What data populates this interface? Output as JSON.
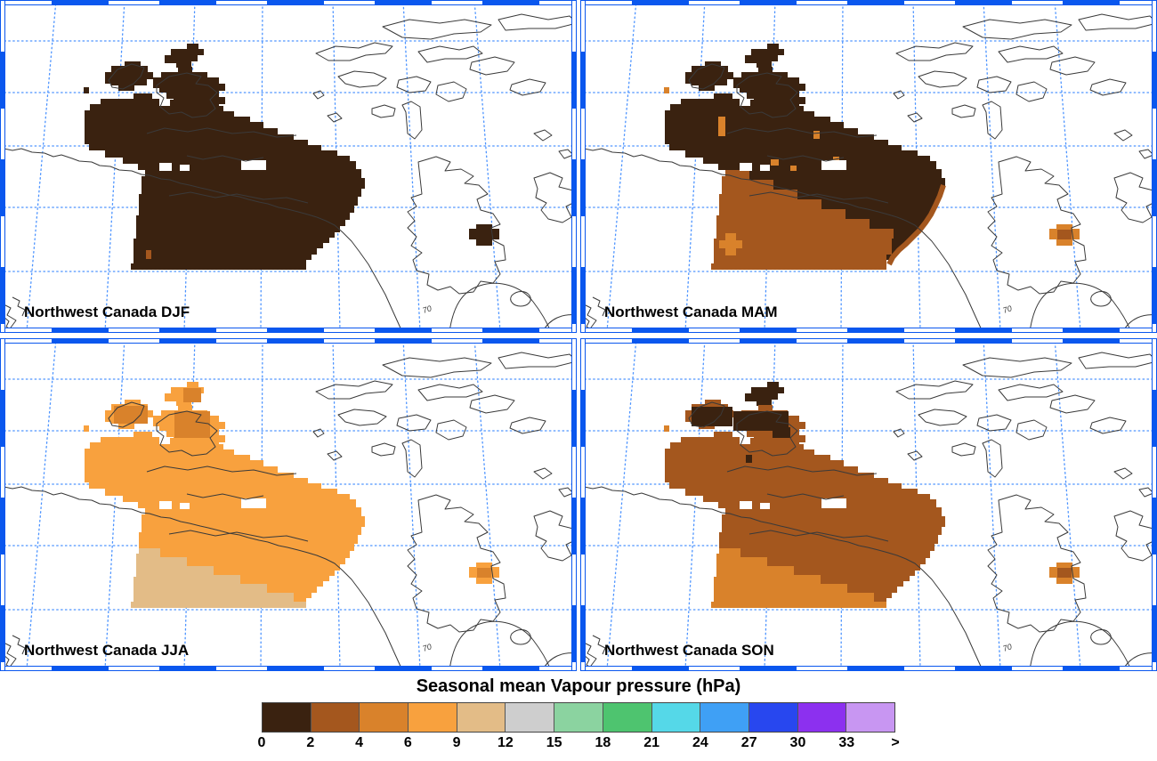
{
  "figure": {
    "title": "Seasonal mean Vapour pressure maps, Northwest Canada",
    "region": "Northwest Canada",
    "annotation_70": "70"
  },
  "panels": [
    {
      "id": "djf",
      "label": "Northwest Canada DJF",
      "dominant_range_hpa": "0-2"
    },
    {
      "id": "mam",
      "label": "Northwest Canada MAM",
      "dominant_range_hpa": "0-2 north, 2-4 south"
    },
    {
      "id": "jja",
      "label": "Northwest Canada JJA",
      "dominant_range_hpa": "6-9 main, 4-6 islands, 9-12 southwest"
    },
    {
      "id": "son",
      "label": "Northwest Canada SON",
      "dominant_range_hpa": "2-4 main, 0-2 islands, 4-6 southwest"
    }
  ],
  "legend": {
    "title": "Seasonal mean Vapour pressure (hPa)",
    "tick_labels": [
      "0",
      "2",
      "4",
      "6",
      "9",
      "12",
      "15",
      "18",
      "21",
      "24",
      "27",
      "30",
      "33",
      ">"
    ],
    "colors": [
      "#3a2210",
      "#a4571e",
      "#d9822b",
      "#f8a13e",
      "#e3bc87",
      "#cecece",
      "#8bd3a0",
      "#4ec46f",
      "#55d8e8",
      "#3fa0f5",
      "#2847ef",
      "#8c30ef",
      "#c896f2"
    ]
  },
  "map_style": {
    "frame_blue": "#0a57ee",
    "grid_blue": "#4d94ff",
    "coastline": "#3a3a3a"
  },
  "chart_data": {
    "type": "heatmap",
    "title": "Seasonal mean Vapour pressure (hPa)",
    "legend_bounds_hpa": [
      0,
      2,
      4,
      6,
      9,
      12,
      15,
      18,
      21,
      24,
      27,
      30,
      33
    ],
    "series": [
      {
        "name": "DJF",
        "values_hpa": "0-2 over nearly all of region"
      },
      {
        "name": "MAM",
        "values_hpa": "0-2 over north/islands, 2-4 over southern interior with small 4-6 spots"
      },
      {
        "name": "JJA",
        "values_hpa": "6-9 over most of region, 4-6 on arctic islands, 9-12 in southwest"
      },
      {
        "name": "SON",
        "values_hpa": "0-2 on arctic islands, 2-4 over most of region, 4-6 in southwest"
      }
    ]
  }
}
